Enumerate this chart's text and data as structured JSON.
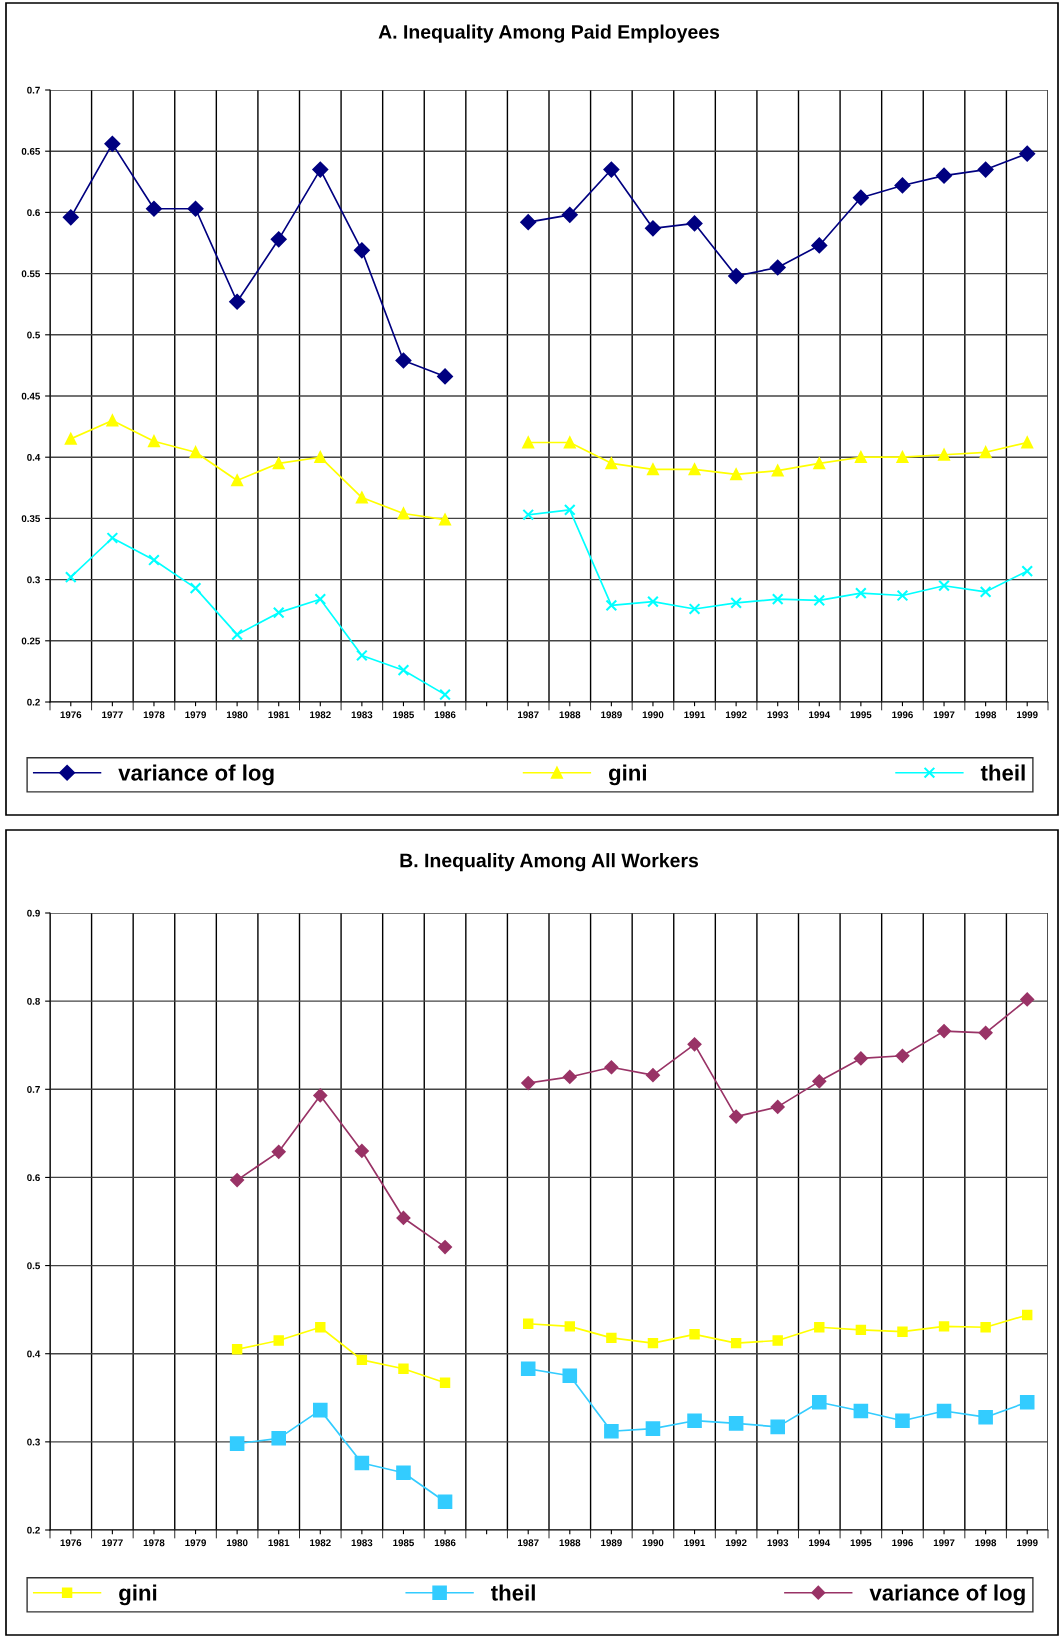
{
  "chart_data": [
    {
      "type": "line",
      "title": "A. Inequality Among Paid Employees",
      "categories": [
        "1976",
        "1977",
        "1978",
        "1979",
        "1980",
        "1981",
        "1982",
        "1983",
        "1985",
        "1986",
        null,
        "1987",
        "1988",
        "1989",
        "1990",
        "1991",
        "1992",
        "1993",
        "1994",
        "1995",
        "1996",
        "1997",
        "1998",
        "1999"
      ],
      "ylim": [
        0.2,
        0.7
      ],
      "yticks": [
        0.2,
        0.25,
        0.3,
        0.35,
        0.4,
        0.45,
        0.5,
        0.55,
        0.6,
        0.65,
        0.7
      ],
      "grid": true,
      "legend": "bottom",
      "series": [
        {
          "name": "variance of log",
          "color": "#000080",
          "marker": "diamond",
          "values": [
            0.596,
            0.656,
            0.603,
            0.603,
            0.527,
            0.578,
            0.635,
            0.569,
            0.479,
            0.466,
            null,
            0.592,
            0.598,
            0.635,
            0.587,
            0.591,
            0.548,
            0.555,
            0.573,
            0.612,
            0.622,
            0.63,
            0.635,
            0.648
          ]
        },
        {
          "name": "gini",
          "color": "#ffff00",
          "marker": "triangle",
          "values": [
            0.415,
            0.43,
            0.413,
            0.404,
            0.381,
            0.395,
            0.4,
            0.367,
            0.354,
            0.349,
            null,
            0.412,
            0.412,
            0.395,
            0.39,
            0.39,
            0.386,
            0.389,
            0.395,
            0.4,
            0.4,
            0.402,
            0.404,
            0.412
          ]
        },
        {
          "name": "theil",
          "color": "#00ffff",
          "marker": "cross",
          "values": [
            0.302,
            0.334,
            0.316,
            0.293,
            0.255,
            0.273,
            0.284,
            0.238,
            0.226,
            0.206,
            null,
            0.353,
            0.357,
            0.279,
            0.282,
            0.276,
            0.281,
            0.284,
            0.283,
            0.289,
            0.287,
            0.295,
            0.29,
            0.307
          ]
        }
      ]
    },
    {
      "type": "line",
      "title": "B. Inequality Among All Workers",
      "categories": [
        "1976",
        "1977",
        "1978",
        "1979",
        "1980",
        "1981",
        "1982",
        "1983",
        "1985",
        "1986",
        null,
        "1987",
        "1988",
        "1989",
        "1990",
        "1991",
        "1992",
        "1993",
        "1994",
        "1995",
        "1996",
        "1997",
        "1998",
        "1999"
      ],
      "ylim": [
        0.2,
        0.9
      ],
      "yticks": [
        0.2,
        0.3,
        0.4,
        0.5,
        0.6,
        0.7,
        0.8,
        0.9
      ],
      "grid": true,
      "legend": "bottom",
      "series": [
        {
          "name": "gini",
          "color": "#ffff00",
          "marker": "square",
          "values": [
            null,
            null,
            null,
            null,
            0.405,
            0.415,
            0.43,
            0.393,
            0.383,
            0.367,
            null,
            0.434,
            0.431,
            0.418,
            0.412,
            0.422,
            0.412,
            0.415,
            0.43,
            0.427,
            0.425,
            0.431,
            0.43,
            0.444
          ]
        },
        {
          "name": "theil",
          "color": "#33ccff",
          "marker": "square",
          "values": [
            null,
            null,
            null,
            null,
            0.298,
            0.304,
            0.336,
            0.276,
            0.265,
            0.232,
            null,
            0.383,
            0.375,
            0.312,
            0.315,
            0.324,
            0.321,
            0.317,
            0.345,
            0.335,
            0.324,
            0.335,
            0.328,
            0.345
          ]
        },
        {
          "name": "variance of log",
          "color": "#993366",
          "marker": "diamond",
          "values": [
            null,
            null,
            null,
            null,
            0.597,
            0.629,
            0.693,
            0.63,
            0.554,
            0.521,
            null,
            0.707,
            0.714,
            0.725,
            0.716,
            0.751,
            0.669,
            0.68,
            0.709,
            0.735,
            0.738,
            0.766,
            0.764,
            0.802
          ]
        }
      ]
    }
  ]
}
